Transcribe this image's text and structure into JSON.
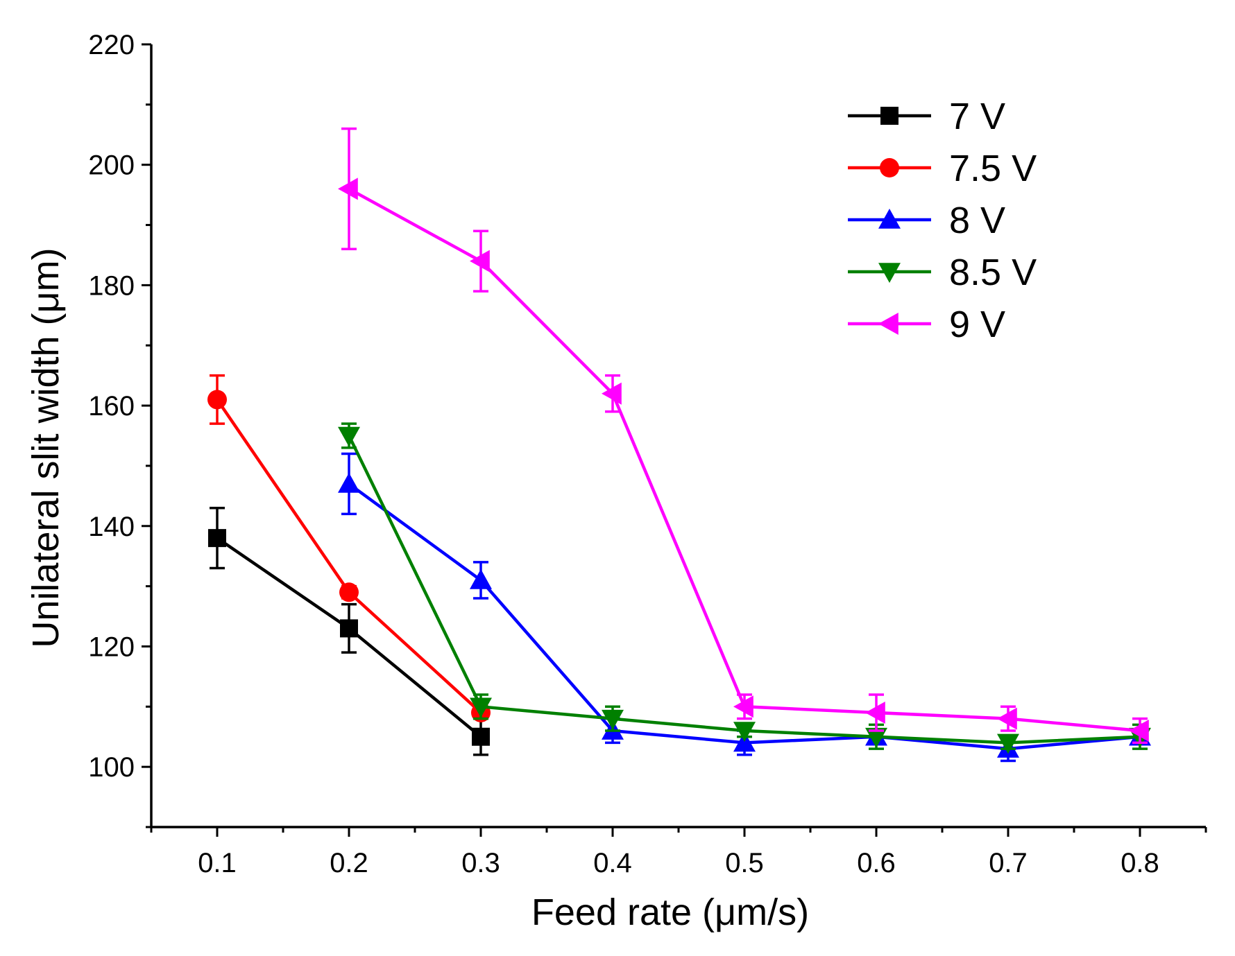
{
  "chart_data": {
    "type": "line",
    "title": "",
    "xlabel": "Feed rate (μm/s)",
    "ylabel": "Unilateral slit width (μm)",
    "xlim": [
      0.05,
      0.85
    ],
    "ylim": [
      90,
      220
    ],
    "x_ticks": [
      0.1,
      0.2,
      0.3,
      0.4,
      0.5,
      0.6,
      0.7,
      0.8
    ],
    "x_tick_labels": [
      "0.1",
      "0.2",
      "0.3",
      "0.4",
      "0.5",
      "0.6",
      "0.7",
      "0.8"
    ],
    "y_ticks": [
      100,
      120,
      140,
      160,
      180,
      200,
      220
    ],
    "y_tick_labels": [
      "100",
      "120",
      "140",
      "160",
      "180",
      "200",
      "220"
    ],
    "legend_position": "top-right",
    "series": [
      {
        "name": "7 V",
        "color": "#000000",
        "marker": "square",
        "x": [
          0.1,
          0.2,
          0.3
        ],
        "y": [
          138,
          123,
          105
        ],
        "err": [
          5,
          4,
          3
        ]
      },
      {
        "name": "7.5 V",
        "color": "#ff0000",
        "marker": "circle",
        "x": [
          0.1,
          0.2,
          0.3
        ],
        "y": [
          161,
          129,
          109
        ],
        "err": [
          4,
          1,
          1
        ]
      },
      {
        "name": "8 V",
        "color": "#0000ff",
        "marker": "triangle-up",
        "x": [
          0.2,
          0.3,
          0.4,
          0.5,
          0.6,
          0.7,
          0.8
        ],
        "y": [
          147,
          131,
          106,
          104,
          105,
          103,
          105
        ],
        "err": [
          5,
          3,
          2,
          2,
          1,
          2,
          1
        ]
      },
      {
        "name": "8.5 V",
        "color": "#008000",
        "marker": "triangle-down",
        "x": [
          0.2,
          0.3,
          0.4,
          0.5,
          0.6,
          0.7,
          0.8
        ],
        "y": [
          155,
          110,
          108,
          106,
          105,
          104,
          105
        ],
        "err": [
          2,
          2,
          2,
          1,
          2,
          1,
          2
        ]
      },
      {
        "name": "9 V",
        "color": "#ff00ff",
        "marker": "triangle-left",
        "x": [
          0.2,
          0.3,
          0.4,
          0.5,
          0.6,
          0.7,
          0.8
        ],
        "y": [
          196,
          184,
          162,
          110,
          109,
          108,
          106
        ],
        "err": [
          10,
          5,
          3,
          2,
          3,
          2,
          2
        ]
      }
    ]
  }
}
